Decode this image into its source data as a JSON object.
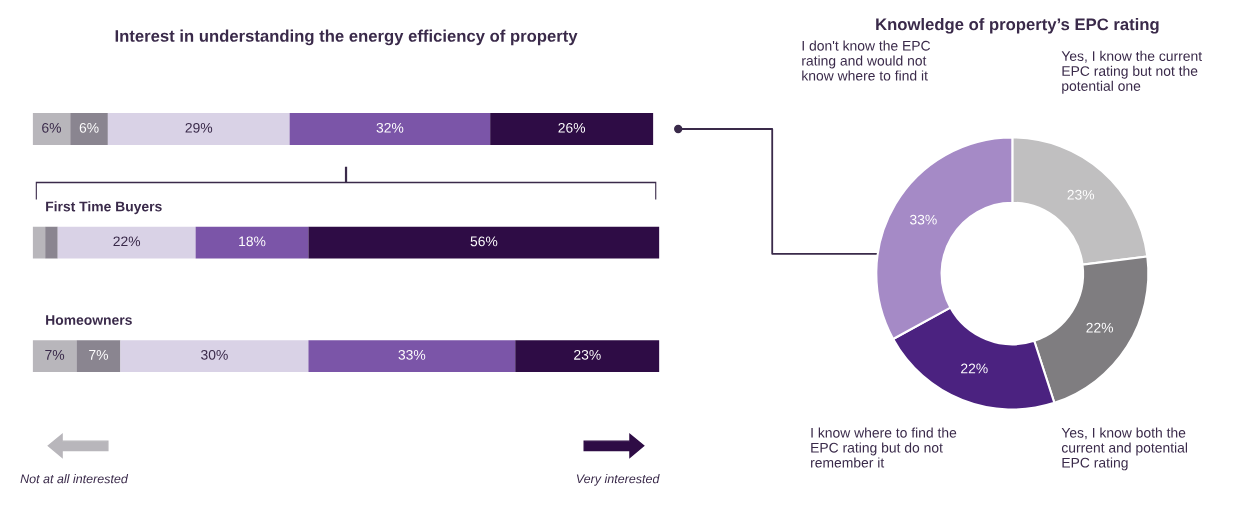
{
  "chart_data": [
    {
      "type": "bar",
      "orientation": "horizontal",
      "stacked": true,
      "title": "Interest in understanding the energy efficiency of property",
      "categories": [
        null,
        "First Time Buyers",
        "Homeowners"
      ],
      "xlim": [
        0,
        100
      ],
      "series": [
        {
          "color": "#b8b6bb",
          "values": [
            6,
            2,
            7
          ],
          "value_labels": [
            "6%",
            null,
            "7%"
          ]
        },
        {
          "color": "#8a8590",
          "values": [
            6,
            2,
            7
          ],
          "value_labels": [
            "6%",
            null,
            "7%"
          ]
        },
        {
          "color": "#d9d2e6",
          "values": [
            29,
            22,
            30
          ],
          "value_labels": [
            "29%",
            "22%",
            "30%"
          ]
        },
        {
          "color": "#7b55a8",
          "values": [
            32,
            18,
            33
          ],
          "value_labels": [
            "32%",
            "18%",
            "33%"
          ]
        },
        {
          "color": "#2e0c45",
          "values": [
            26,
            56,
            23
          ],
          "value_labels": [
            "26%",
            "56%",
            "23%"
          ]
        }
      ],
      "annotations": [
        "Not at all interested",
        "Very interested"
      ]
    },
    {
      "type": "donut",
      "title": "Knowledge of property’s EPC rating",
      "categories": [
        "Yes, I know the current EPC rating but not the potential one",
        "Yes, I know both the current and potential EPC rating",
        "I know where to find the EPC rating but do not remember it",
        "I don't know the EPC rating and would not know where to find it"
      ],
      "values": [
        23,
        22,
        22,
        33
      ],
      "value_labels": [
        "23%",
        "22%",
        "22%",
        "33%"
      ],
      "colors": [
        "#c0bfc0",
        "#7f7d80",
        "#4b2280",
        "#a58ac6"
      ]
    }
  ]
}
